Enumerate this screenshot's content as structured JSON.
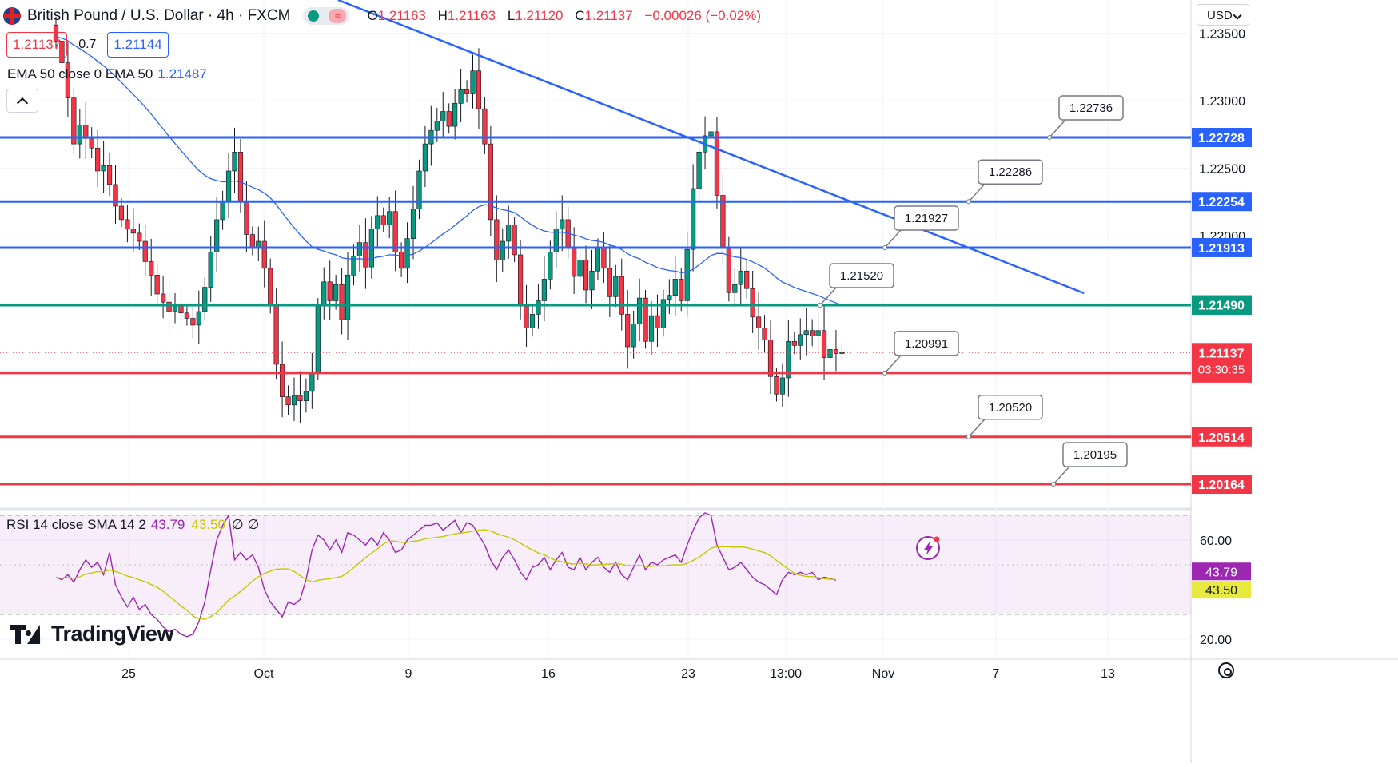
{
  "header": {
    "symbol": "British Pound / U.S. Dollar · 4h · FXCM",
    "open_label": "O",
    "open": "1.21163",
    "high_label": "H",
    "high": "1.21163",
    "low_label": "L",
    "low": "1.21120",
    "close_label": "C",
    "close": "1.21137",
    "change": "−0.00026 (−0.02%)"
  },
  "quote": {
    "bid": "1.21137",
    "spread": "0.7",
    "ask": "1.21144"
  },
  "ema_legend": {
    "label": "EMA 50 close 0 EMA 50",
    "value": "1.21487"
  },
  "currency": "USD",
  "rsi_legend": {
    "label": "RSI 14 close SMA 14 2",
    "rsi": "43.79",
    "sma": "43.50",
    "extra": "∅ ∅"
  },
  "logo": "TradingView",
  "chart_data": [
    {
      "type": "candlestick",
      "title": "British Pound / U.S. Dollar · 4h · FXCM",
      "y_axis_ticks": [
        "1.23500",
        "1.23000",
        "1.22500",
        "1.22000"
      ],
      "ylim": [
        1.2,
        1.236
      ],
      "x_axis_ticks": [
        "25",
        "Oct",
        "9",
        "16",
        "23",
        "13:00",
        "Nov",
        "7",
        "13"
      ],
      "horizontal_levels": [
        {
          "price": 1.22728,
          "label": "1.22728",
          "color": "#2962ff",
          "callout": "1.22736"
        },
        {
          "price": 1.22254,
          "label": "1.22254",
          "color": "#2962ff",
          "callout": "1.22286"
        },
        {
          "price": 1.21913,
          "label": "1.21913",
          "color": "#2962ff",
          "callout": "1.21927"
        },
        {
          "price": 1.21487,
          "label": "1.21487",
          "color": "#089981",
          "callout": "1.21520"
        },
        {
          "price": 1.20986,
          "label": "1.20986",
          "color": "#f23645",
          "callout": "1.20991"
        },
        {
          "price": 1.20514,
          "label": "1.20514",
          "color": "#f23645",
          "callout": "1.20520"
        },
        {
          "price": 1.20164,
          "label": "1.20164",
          "color": "#f23645",
          "callout": "1.20195"
        }
      ],
      "price_tags": [
        {
          "label": "1.21490",
          "price": 1.2149,
          "color": "#089981"
        },
        {
          "label": "1.21137",
          "price": 1.21137,
          "color": "#f23645",
          "sub": "03:30:35"
        }
      ],
      "trendline": {
        "color": "#2962ff",
        "from": [
          1,
          1.23625
        ],
        "to": [
          101,
          1.21962
        ]
      },
      "ema50_color": "#2962ff",
      "ema50_last": 1.21487,
      "last_price": 1.21137,
      "up_color": "#089981",
      "down_color": "#f23645",
      "closes": [
        1.2344,
        1.2328,
        1.2302,
        1.2268,
        1.2282,
        1.2272,
        1.2265,
        1.2248,
        1.2252,
        1.2238,
        1.2222,
        1.2212,
        1.2205,
        1.2202,
        1.2196,
        1.2181,
        1.2171,
        1.2157,
        1.2151,
        1.2144,
        1.2148,
        1.2143,
        1.2139,
        1.2134,
        1.2144,
        1.2162,
        1.2188,
        1.2212,
        1.2225,
        1.2248,
        1.2262,
        1.2226,
        1.2201,
        1.2191,
        1.2196,
        1.2176,
        1.2149,
        1.2105,
        1.2081,
        1.2075,
        1.2082,
        1.2078,
        1.2085,
        1.2099,
        1.2148,
        1.2166,
        1.2152,
        1.2164,
        1.2138,
        1.2171,
        1.2185,
        1.2195,
        1.2177,
        1.2205,
        1.2215,
        1.2208,
        1.2218,
        1.2188,
        1.2176,
        1.2198,
        1.222,
        1.2248,
        1.2268,
        1.2278,
        1.2285,
        1.2292,
        1.2281,
        1.2298,
        1.2308,
        1.2305,
        1.2322,
        1.2294,
        1.2268,
        1.2212,
        1.2182,
        1.2196,
        1.2208,
        1.2186,
        1.2148,
        1.2132,
        1.2142,
        1.2152,
        1.2168,
        1.2188,
        1.2205,
        1.2212,
        1.2192,
        1.217,
        1.2182,
        1.216,
        1.2174,
        1.2191,
        1.2176,
        1.2155,
        1.217,
        1.2142,
        1.2118,
        1.2135,
        1.2154,
        1.2122,
        1.2141,
        1.2132,
        1.2153,
        1.2156,
        1.2168,
        1.2152,
        1.219,
        1.2235,
        1.2262,
        1.2274,
        1.2277,
        1.223,
        1.2192,
        1.2158,
        1.2164,
        1.2174,
        1.2161,
        1.214,
        1.2132,
        1.2123,
        1.2096,
        1.2083,
        1.2095,
        1.2122,
        1.2119,
        1.2127,
        1.213,
        1.2126,
        1.213,
        1.211,
        1.2116,
        1.2113,
        1.21137
      ],
      "rsi_panel": {
        "ylim": [
          10,
          80
        ],
        "y_axis_ticks": [
          "60.00",
          "20.00"
        ],
        "band_upper": 70,
        "band_lower": 30,
        "mid": 50,
        "rsi_color": "#9c27b0",
        "sma_color": "#c6c800",
        "rsi_last": 43.79,
        "sma_last": 43.5,
        "rsi_values": [
          45,
          44,
          46,
          43,
          48,
          52,
          49,
          51,
          46,
          55,
          42,
          37,
          33,
          37,
          32,
          34,
          30,
          28,
          25,
          23,
          24,
          22,
          21,
          22,
          27,
          35,
          48,
          60,
          66,
          70,
          52,
          55,
          52,
          54,
          49,
          40,
          35,
          32,
          29,
          35,
          34,
          36,
          44,
          56,
          62,
          60,
          56,
          60,
          55,
          63,
          62,
          60,
          58,
          61,
          58,
          63,
          60,
          55,
          56,
          60,
          62,
          64,
          66,
          66,
          67,
          64,
          66,
          68,
          63,
          67,
          66,
          62,
          58,
          52,
          48,
          53,
          56,
          52,
          47,
          44,
          49,
          50,
          53,
          48,
          52,
          55,
          49,
          48,
          53,
          48,
          51,
          53,
          49,
          47,
          51,
          46,
          44,
          49,
          54,
          48,
          51,
          50,
          52,
          53,
          54,
          51,
          58,
          64,
          69,
          71,
          70,
          58,
          53,
          48,
          49,
          51,
          48,
          45,
          43,
          42,
          40,
          38,
          44,
          47,
          46,
          47,
          46,
          47,
          44,
          45,
          44.5,
          43.79
        ]
      }
    }
  ]
}
